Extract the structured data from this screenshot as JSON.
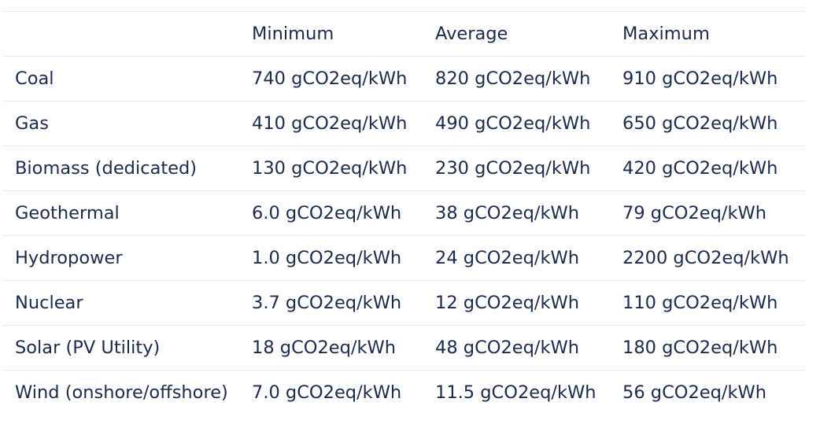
{
  "table": {
    "headers": [
      "",
      "Minimum",
      "Average",
      "Maximum"
    ],
    "rows": [
      [
        "Coal",
        "740 gCO2eq/kWh",
        "820 gCO2eq/kWh",
        "910 gCO2eq/kWh"
      ],
      [
        "Gas",
        "410 gCO2eq/kWh",
        "490 gCO2eq/kWh",
        "650 gCO2eq/kWh"
      ],
      [
        "Biomass (dedicated)",
        "130 gCO2eq/kWh",
        "230 gCO2eq/kWh",
        "420 gCO2eq/kWh"
      ],
      [
        "Geothermal",
        "6.0 gCO2eq/kWh",
        "38 gCO2eq/kWh",
        "79 gCO2eq/kWh"
      ],
      [
        "Hydropower",
        "1.0 gCO2eq/kWh",
        "24 gCO2eq/kWh",
        "2200 gCO2eq/kWh"
      ],
      [
        "Nuclear",
        "3.7 gCO2eq/kWh",
        "12 gCO2eq/kWh",
        "110 gCO2eq/kWh"
      ],
      [
        "Solar (PV Utility)",
        "18 gCO2eq/kWh",
        "48 gCO2eq/kWh",
        "180 gCO2eq/kWh"
      ],
      [
        "Wind (onshore/offshore)",
        "7.0 gCO2eq/kWh",
        "11.5 gCO2eq/kWh",
        "56 gCO2eq/kWh"
      ]
    ]
  },
  "colors": {
    "text": "#1b2b4b",
    "border": "#e3e6ea",
    "background": "#ffffff"
  }
}
